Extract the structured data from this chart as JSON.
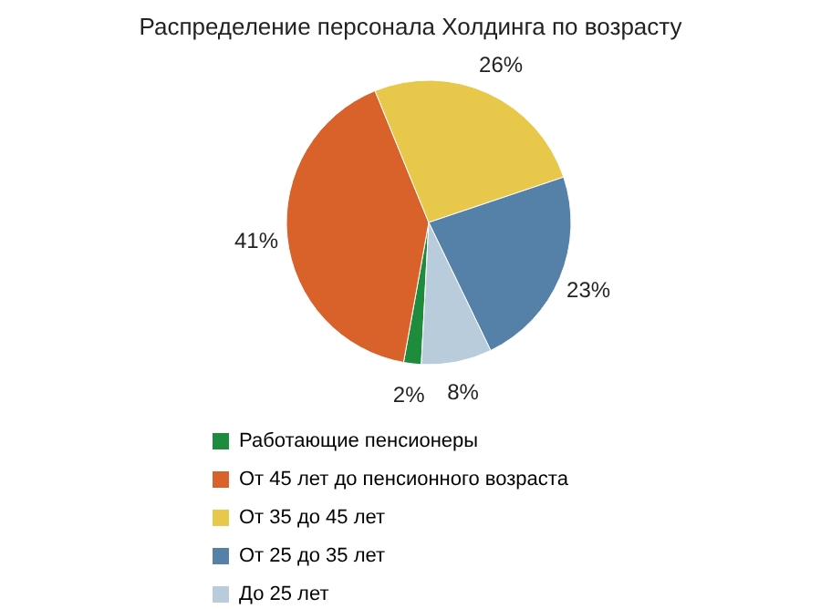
{
  "chart_data": {
    "type": "pie",
    "title": "Распределение персонала Холдинга по возрасту",
    "categories": [
      "Работающие пенсионеры",
      "От 45 лет до пенсионного возраста",
      "От 35 до 45 лет",
      "От 25 до 35 лет",
      "До 25 лет"
    ],
    "values": [
      2,
      41,
      26,
      23,
      8
    ],
    "colors": [
      "#1e8c3c",
      "#d9622b",
      "#e8c84a",
      "#5580a8",
      "#b8ccdc"
    ],
    "value_labels": [
      "2%",
      "41%",
      "26%",
      "23%",
      "8%"
    ],
    "legend": "bottom"
  }
}
